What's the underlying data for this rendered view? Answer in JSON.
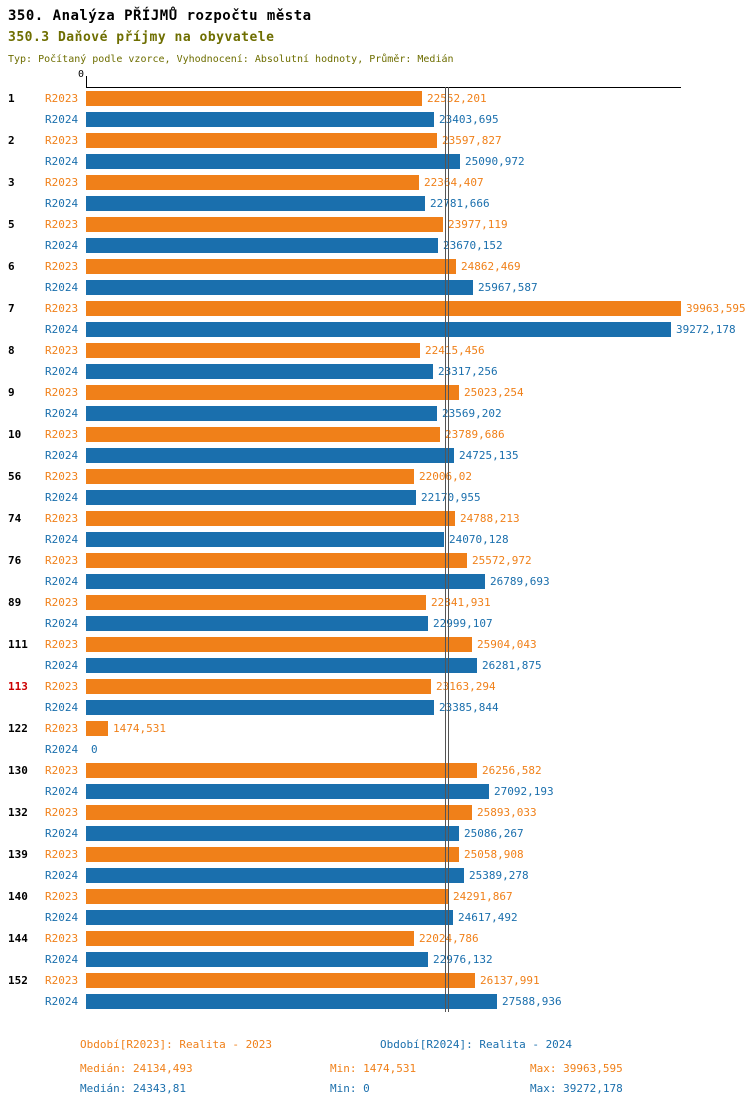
{
  "header": {
    "title": "350. Analýza PŘÍJMŮ rozpočtu města",
    "subtitle": "350.3 Daňové příjmy na obyvatele",
    "meta": "Typ: Počítaný podle vzorce, Vyhodnocení: Absolutní hodnoty, Průměr: Medián"
  },
  "colors": {
    "r2023": "#f08019",
    "r2024": "#1a6fad",
    "highlight": "#cc0000",
    "subtitle": "#6e6e00",
    "meta": "#6e6e00",
    "axis": "#000000",
    "median_line": "#555555"
  },
  "chart_data": {
    "type": "bar",
    "orientation": "horizontal",
    "title": "350.3 Daňové příjmy na obyvatele",
    "axis_origin_label": "0",
    "xlim": [
      0,
      39963.595
    ],
    "grid": false,
    "legend_position": "bottom",
    "categories": [
      "1",
      "2",
      "3",
      "5",
      "6",
      "7",
      "8",
      "9",
      "10",
      "56",
      "74",
      "76",
      "89",
      "111",
      "113",
      "122",
      "130",
      "132",
      "139",
      "140",
      "144",
      "152"
    ],
    "highlighted_category": "113",
    "highlight_color": "#cc0000",
    "series": [
      {
        "name": "R2023",
        "color": "#f08019",
        "median": 24134.493,
        "values": [
          22552.201,
          23597.827,
          22364.407,
          23977.119,
          24862.469,
          39963.595,
          22415.456,
          25023.254,
          23789.686,
          22006.02,
          24788.213,
          25572.972,
          22841.931,
          25904.043,
          23163.294,
          1474.531,
          26256.582,
          25893.033,
          25058.908,
          24291.867,
          22024.786,
          26137.991
        ],
        "labels": [
          "22552,201",
          "23597,827",
          "22364,407",
          "23977,119",
          "24862,469",
          "39963,595",
          "22415,456",
          "25023,254",
          "23789,686",
          "22006,02",
          "24788,213",
          "25572,972",
          "22841,931",
          "25904,043",
          "23163,294",
          "1474,531",
          "26256,582",
          "25893,033",
          "25058,908",
          "24291,867",
          "22024,786",
          "26137,991"
        ]
      },
      {
        "name": "R2024",
        "color": "#1a6fad",
        "median": 24343.81,
        "values": [
          23403.695,
          25090.972,
          22781.666,
          23670.152,
          25967.587,
          39272.178,
          23317.256,
          23569.202,
          24725.135,
          22170.955,
          24070.128,
          26789.693,
          22999.107,
          26281.875,
          23385.844,
          0,
          27092.193,
          25086.267,
          25389.278,
          24617.492,
          22976.132,
          27588.936
        ],
        "labels": [
          "23403,695",
          "25090,972",
          "22781,666",
          "23670,152",
          "25967,587",
          "39272,178",
          "23317,256",
          "23569,202",
          "24725,135",
          "22170,955",
          "24070,128",
          "26789,693",
          "22999,107",
          "26281,875",
          "23385,844",
          "0",
          "27092,193",
          "25086,267",
          "25389,278",
          "24617,492",
          "22976,132",
          "27588,936"
        ]
      }
    ]
  },
  "footer": {
    "period_r2023": "Období[R2023]: Realita - 2023",
    "period_r2024": "Období[R2024]: Realita - 2024",
    "r2023_median": "Medián: 24134,493",
    "r2023_min": "Min: 1474,531",
    "r2023_max": "Max: 39963,595",
    "r2024_median": "Medián: 24343,81",
    "r2024_min": "Min: 0",
    "r2024_max": "Max: 39272,178"
  }
}
